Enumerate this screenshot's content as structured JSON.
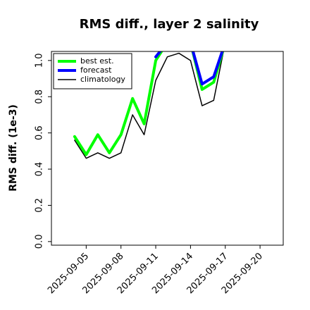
{
  "chart_data": {
    "type": "line",
    "title": "RMS diff., layer 2 salinity",
    "xlabel": "",
    "ylabel": "RMS diff. (1e-3)",
    "ylim": [
      -0.02,
      1.05
    ],
    "xlim": [
      "2025-09-02",
      "2025-09-22"
    ],
    "yticks": [
      0.0,
      0.2,
      0.4,
      0.6,
      0.8,
      1.0
    ],
    "yticklabels": [
      "0.0",
      "0.2",
      "0.4",
      "0.6",
      "0.8",
      "1.0"
    ],
    "xticks": [
      "2025-09-05",
      "2025-09-08",
      "2025-09-11",
      "2025-09-14",
      "2025-09-17",
      "2025-09-20"
    ],
    "xticklabels": [
      "2025-09-05",
      "2025-09-08",
      "2025-09-11",
      "2025-09-14",
      "2025-09-17",
      "2025-09-20"
    ],
    "highlight_tick": "2025-09-11",
    "grid": false,
    "legend_position": "top-left",
    "x": [
      "2025-09-04",
      "2025-09-05",
      "2025-09-06",
      "2025-09-07",
      "2025-09-08",
      "2025-09-09",
      "2025-09-10",
      "2025-09-11",
      "2025-09-12",
      "2025-09-13",
      "2025-09-14",
      "2025-09-15",
      "2025-09-16",
      "2025-09-17"
    ],
    "series": [
      {
        "name": "best est.",
        "color": "#00ff00",
        "width": 4,
        "values": [
          0.58,
          0.48,
          0.59,
          0.49,
          0.59,
          0.79,
          0.65,
          1.0,
          1.1,
          1.1,
          1.1,
          0.84,
          0.88,
          1.1
        ]
      },
      {
        "name": "forecast",
        "color": "#0000ff",
        "width": 4,
        "values": [
          null,
          null,
          null,
          null,
          null,
          null,
          null,
          1.02,
          1.1,
          1.1,
          1.1,
          0.87,
          0.91,
          1.1
        ]
      },
      {
        "name": "climatology",
        "color": "#000000",
        "width": 1.5,
        "values": [
          0.56,
          0.46,
          0.49,
          0.46,
          0.49,
          0.7,
          0.59,
          0.89,
          1.02,
          1.04,
          1.0,
          0.75,
          0.78,
          1.1
        ]
      }
    ]
  }
}
